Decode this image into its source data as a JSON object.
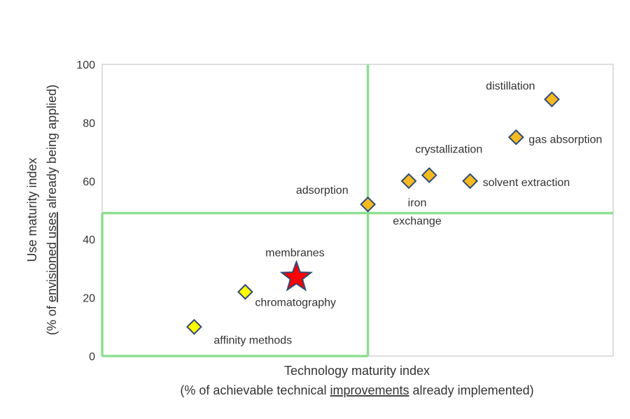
{
  "chart_data": {
    "type": "scatter",
    "title": "",
    "xlabel": "Technology maturity index",
    "xlabel_sub": {
      "before": "(% of achievable technical ",
      "underlined": "improvements",
      "after": " already implemented)"
    },
    "ylabel": "Use maturity index",
    "ylabel_sub": {
      "before": "(% of ",
      "underlined": "envisioned uses",
      "after": " already being applied)"
    },
    "ylim": [
      0,
      100
    ],
    "y_ticks": [
      0,
      20,
      40,
      60,
      80,
      100
    ],
    "xlim": [
      0,
      100
    ],
    "x_ticks_shown": false,
    "grid": false,
    "quadrant_lines": {
      "x": 52,
      "y": 49,
      "color": "#8fde92"
    },
    "marker_colors": {
      "upper": "#f6b91e",
      "lower": "#ffff00",
      "outline": "#2f4a78",
      "star": "#ff0000"
    },
    "points": [
      {
        "label": "affinity methods",
        "x": 18,
        "y": 10,
        "marker": "diamond",
        "fill": "#ffff00"
      },
      {
        "label": "chromatography",
        "x": 28,
        "y": 22,
        "marker": "diamond",
        "fill": "#ffff00"
      },
      {
        "label": "membranes",
        "x": 38,
        "y": 27,
        "marker": "star",
        "fill": "#ff0000"
      },
      {
        "label": "adsorption",
        "x": 52,
        "y": 52,
        "marker": "diamond",
        "fill": "#f6b91e"
      },
      {
        "label": "iron exchange",
        "x": 60,
        "y": 60,
        "marker": "diamond",
        "fill": "#f6b91e"
      },
      {
        "label": "crystallization",
        "x": 64,
        "y": 62,
        "marker": "diamond",
        "fill": "#f6b91e"
      },
      {
        "label": "solvent extraction",
        "x": 72,
        "y": 60,
        "marker": "diamond",
        "fill": "#f6b91e"
      },
      {
        "label": "gas absorption",
        "x": 81,
        "y": 75,
        "marker": "diamond",
        "fill": "#f6b91e"
      },
      {
        "label": "distillation",
        "x": 88,
        "y": 88,
        "marker": "diamond",
        "fill": "#f6b91e"
      }
    ]
  }
}
